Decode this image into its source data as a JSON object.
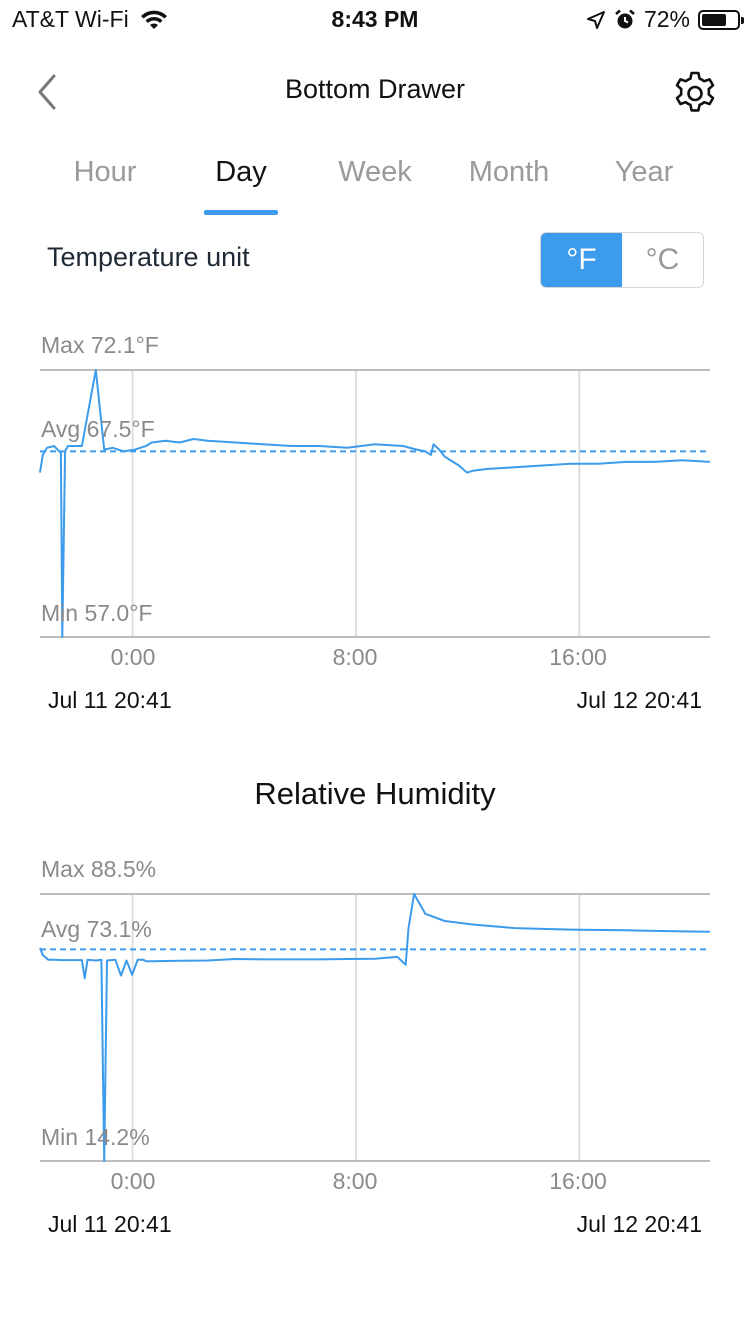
{
  "status_bar": {
    "carrier": "AT&T Wi-Fi",
    "time": "8:43 PM",
    "battery_percent": "72%",
    "battery_level": 0.72,
    "icons": [
      "wifi-icon",
      "location-icon",
      "alarm-icon",
      "battery-icon"
    ]
  },
  "nav": {
    "title": "Bottom Drawer",
    "back_icon": "chevron-left-icon",
    "settings_icon": "gear-icon"
  },
  "tabs": [
    {
      "label": "Hour",
      "active": false
    },
    {
      "label": "Day",
      "active": true
    },
    {
      "label": "Week",
      "active": false
    },
    {
      "label": "Month",
      "active": false
    },
    {
      "label": "Year",
      "active": false
    }
  ],
  "temperature_unit": {
    "label": "Temperature unit",
    "options": [
      "°F",
      "°C"
    ],
    "selected": "°F"
  },
  "accent_color": "#3d9bec",
  "chart_data": [
    {
      "type": "line",
      "title": "",
      "max_label": "Max 72.1°F",
      "avg_label": "Avg 67.5°F",
      "min_label": "Min 57.0°F",
      "ylim": [
        57.0,
        72.1
      ],
      "avg": 67.5,
      "x_ticks": [
        "0:00",
        "8:00",
        "16:00"
      ],
      "start_label": "Jul 11  20:41",
      "end_label": "Jul 12  20:41",
      "series": [
        {
          "x": [
            0,
            0.1,
            0.25,
            0.5,
            0.75,
            0.8,
            0.9,
            1.0,
            1.5,
            2.0,
            2.3,
            2.6,
            3.0,
            3.4,
            3.8,
            4.0,
            4.5,
            5.0,
            5.5,
            6.0,
            7.0,
            8.0,
            9.0,
            10.0,
            11.0,
            12.0,
            13.0,
            13.5,
            13.8,
            14.0,
            14.1,
            14.3,
            14.5,
            15.0,
            15.3,
            15.5,
            16.0,
            17.0,
            18.0,
            19.0,
            20.0,
            21.0,
            22.0,
            23.0,
            24.0
          ],
          "y": [
            66.3,
            67.3,
            67.7,
            67.8,
            67.4,
            57.0,
            67.5,
            67.8,
            67.8,
            72.1,
            67.6,
            67.7,
            67.5,
            67.6,
            67.8,
            68.0,
            68.1,
            68.0,
            68.2,
            68.1,
            68.0,
            67.9,
            67.8,
            67.8,
            67.7,
            67.9,
            67.8,
            67.6,
            67.5,
            67.3,
            67.9,
            67.6,
            67.2,
            66.7,
            66.3,
            66.4,
            66.5,
            66.6,
            66.7,
            66.8,
            66.8,
            66.9,
            66.9,
            67.0,
            66.9
          ]
        }
      ]
    },
    {
      "type": "line",
      "title": "Relative Humidity",
      "max_label": "Max 88.5%",
      "avg_label": "Avg 73.1%",
      "min_label": "Min 14.2%",
      "ylim": [
        14.2,
        88.5
      ],
      "avg": 73.1,
      "x_ticks": [
        "0:00",
        "8:00",
        "16:00"
      ],
      "start_label": "Jul 11  20:41",
      "end_label": "Jul 12  20:41",
      "series": [
        {
          "x": [
            0,
            0.1,
            0.3,
            0.5,
            0.8,
            1.2,
            1.5,
            1.6,
            1.7,
            2.0,
            2.2,
            2.3,
            2.4,
            2.7,
            2.9,
            3.1,
            3.3,
            3.5,
            3.6,
            3.7,
            3.8,
            4.0,
            5.0,
            6.0,
            7.0,
            8.0,
            9.0,
            10.0,
            11.0,
            12.0,
            12.8,
            13.1,
            13.2,
            13.4,
            13.8,
            14.5,
            15.5,
            17.0,
            19.0,
            21.0,
            23.0,
            24.0
          ],
          "y": [
            73.5,
            71.5,
            70.2,
            70.2,
            70.1,
            70.1,
            70.1,
            65.0,
            70.2,
            70.0,
            70.2,
            14.2,
            70.0,
            70.2,
            65.8,
            70.0,
            66.0,
            70.2,
            70.2,
            70.2,
            69.8,
            69.8,
            69.9,
            70.0,
            70.4,
            70.3,
            70.3,
            70.3,
            70.4,
            70.5,
            71.0,
            68.8,
            79.0,
            88.5,
            83.0,
            81.0,
            80.0,
            79.0,
            78.6,
            78.4,
            78.1,
            78.0
          ]
        }
      ]
    }
  ]
}
